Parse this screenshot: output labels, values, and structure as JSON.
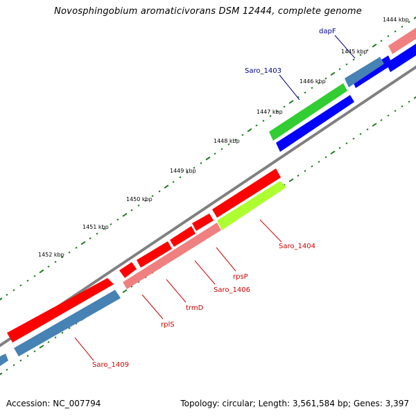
{
  "title": "Novosphingobium aromaticivorans DSM 12444, complete genome",
  "footer": {
    "accession": "Accession: NC_007794",
    "summary": "Topology: circular; Length: 3,561,584 bp; Genes: 3,397"
  },
  "ticks": [
    "1444 kbp",
    "1445 kbp",
    "1446 kbp",
    "1447 kbp",
    "1448 kbp",
    "1449 kbp",
    "1450 kbp",
    "1451 kbp",
    "1452 kbp"
  ],
  "gene_labels": {
    "dapF": "dapF",
    "Saro_1403": "Saro_1403",
    "Saro_1404": "Saro_1404",
    "rpsP": "rpsP",
    "Saro_1406": "Saro_1406",
    "trmD": "trmD",
    "rplS": "rplS",
    "Saro_1409": "Saro_1409"
  },
  "colors": {
    "backbone": "#808080",
    "tick": "#1f7a1f",
    "forward_label": "#00008b",
    "reverse_label": "#cc0000",
    "red": "#ff0000",
    "pink": "#f08080",
    "steelblue": "#4682b4",
    "green": "#32cd32",
    "yellowgreen": "#adff2f",
    "blue": "#0000ff"
  }
}
